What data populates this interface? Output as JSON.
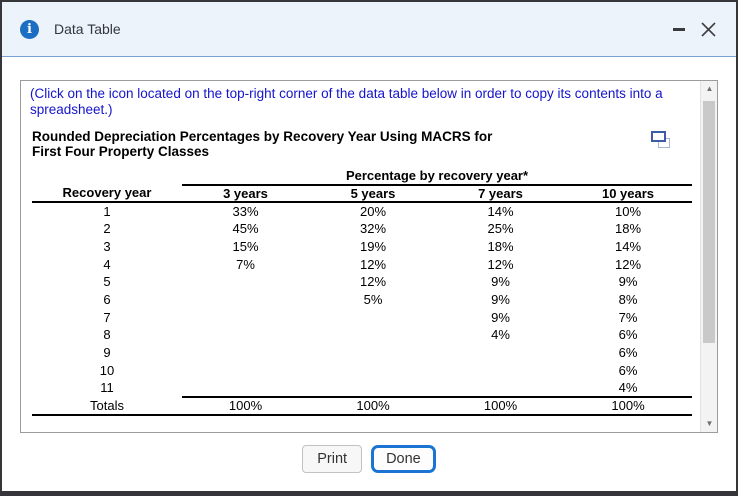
{
  "window": {
    "title": "Data Table"
  },
  "instruction": "(Click on the icon located on the top-right corner of the data table below in order to copy its contents into a spreadsheet.)",
  "data_table": {
    "title": "Rounded Depreciation Percentages by Recovery Year Using MACRS for\nFirst Four Property Classes",
    "group_header": "Percentage by recovery year*",
    "columns": [
      "Recovery year",
      "3 years",
      "5 years",
      "7 years",
      "10 years"
    ],
    "rows": [
      [
        "1",
        "33%",
        "20%",
        "14%",
        "10%"
      ],
      [
        "2",
        "45%",
        "32%",
        "25%",
        "18%"
      ],
      [
        "3",
        "15%",
        "19%",
        "18%",
        "14%"
      ],
      [
        "4",
        "7%",
        "12%",
        "12%",
        "12%"
      ],
      [
        "5",
        "",
        "12%",
        "9%",
        "9%"
      ],
      [
        "6",
        "",
        "5%",
        "9%",
        "8%"
      ],
      [
        "7",
        "",
        "",
        "9%",
        "7%"
      ],
      [
        "8",
        "",
        "",
        "4%",
        "6%"
      ],
      [
        "9",
        "",
        "",
        "",
        "6%"
      ],
      [
        "10",
        "",
        "",
        "",
        "6%"
      ],
      [
        "11",
        "",
        "",
        "",
        "4%"
      ]
    ],
    "totals": [
      "Totals",
      "100%",
      "100%",
      "100%",
      "100%"
    ]
  },
  "footer": {
    "print": "Print",
    "done": "Done"
  },
  "colors": {
    "titlebar_bg": "#edf3fb",
    "info_icon_blue": "#1b6ec2",
    "instruction_text": "#1414cc",
    "done_border_blue": "#1b74d2",
    "copy_icon_front": "#3c5ca6",
    "copy_icon_back": "#a9b6d6",
    "window_border": "#36363a"
  }
}
